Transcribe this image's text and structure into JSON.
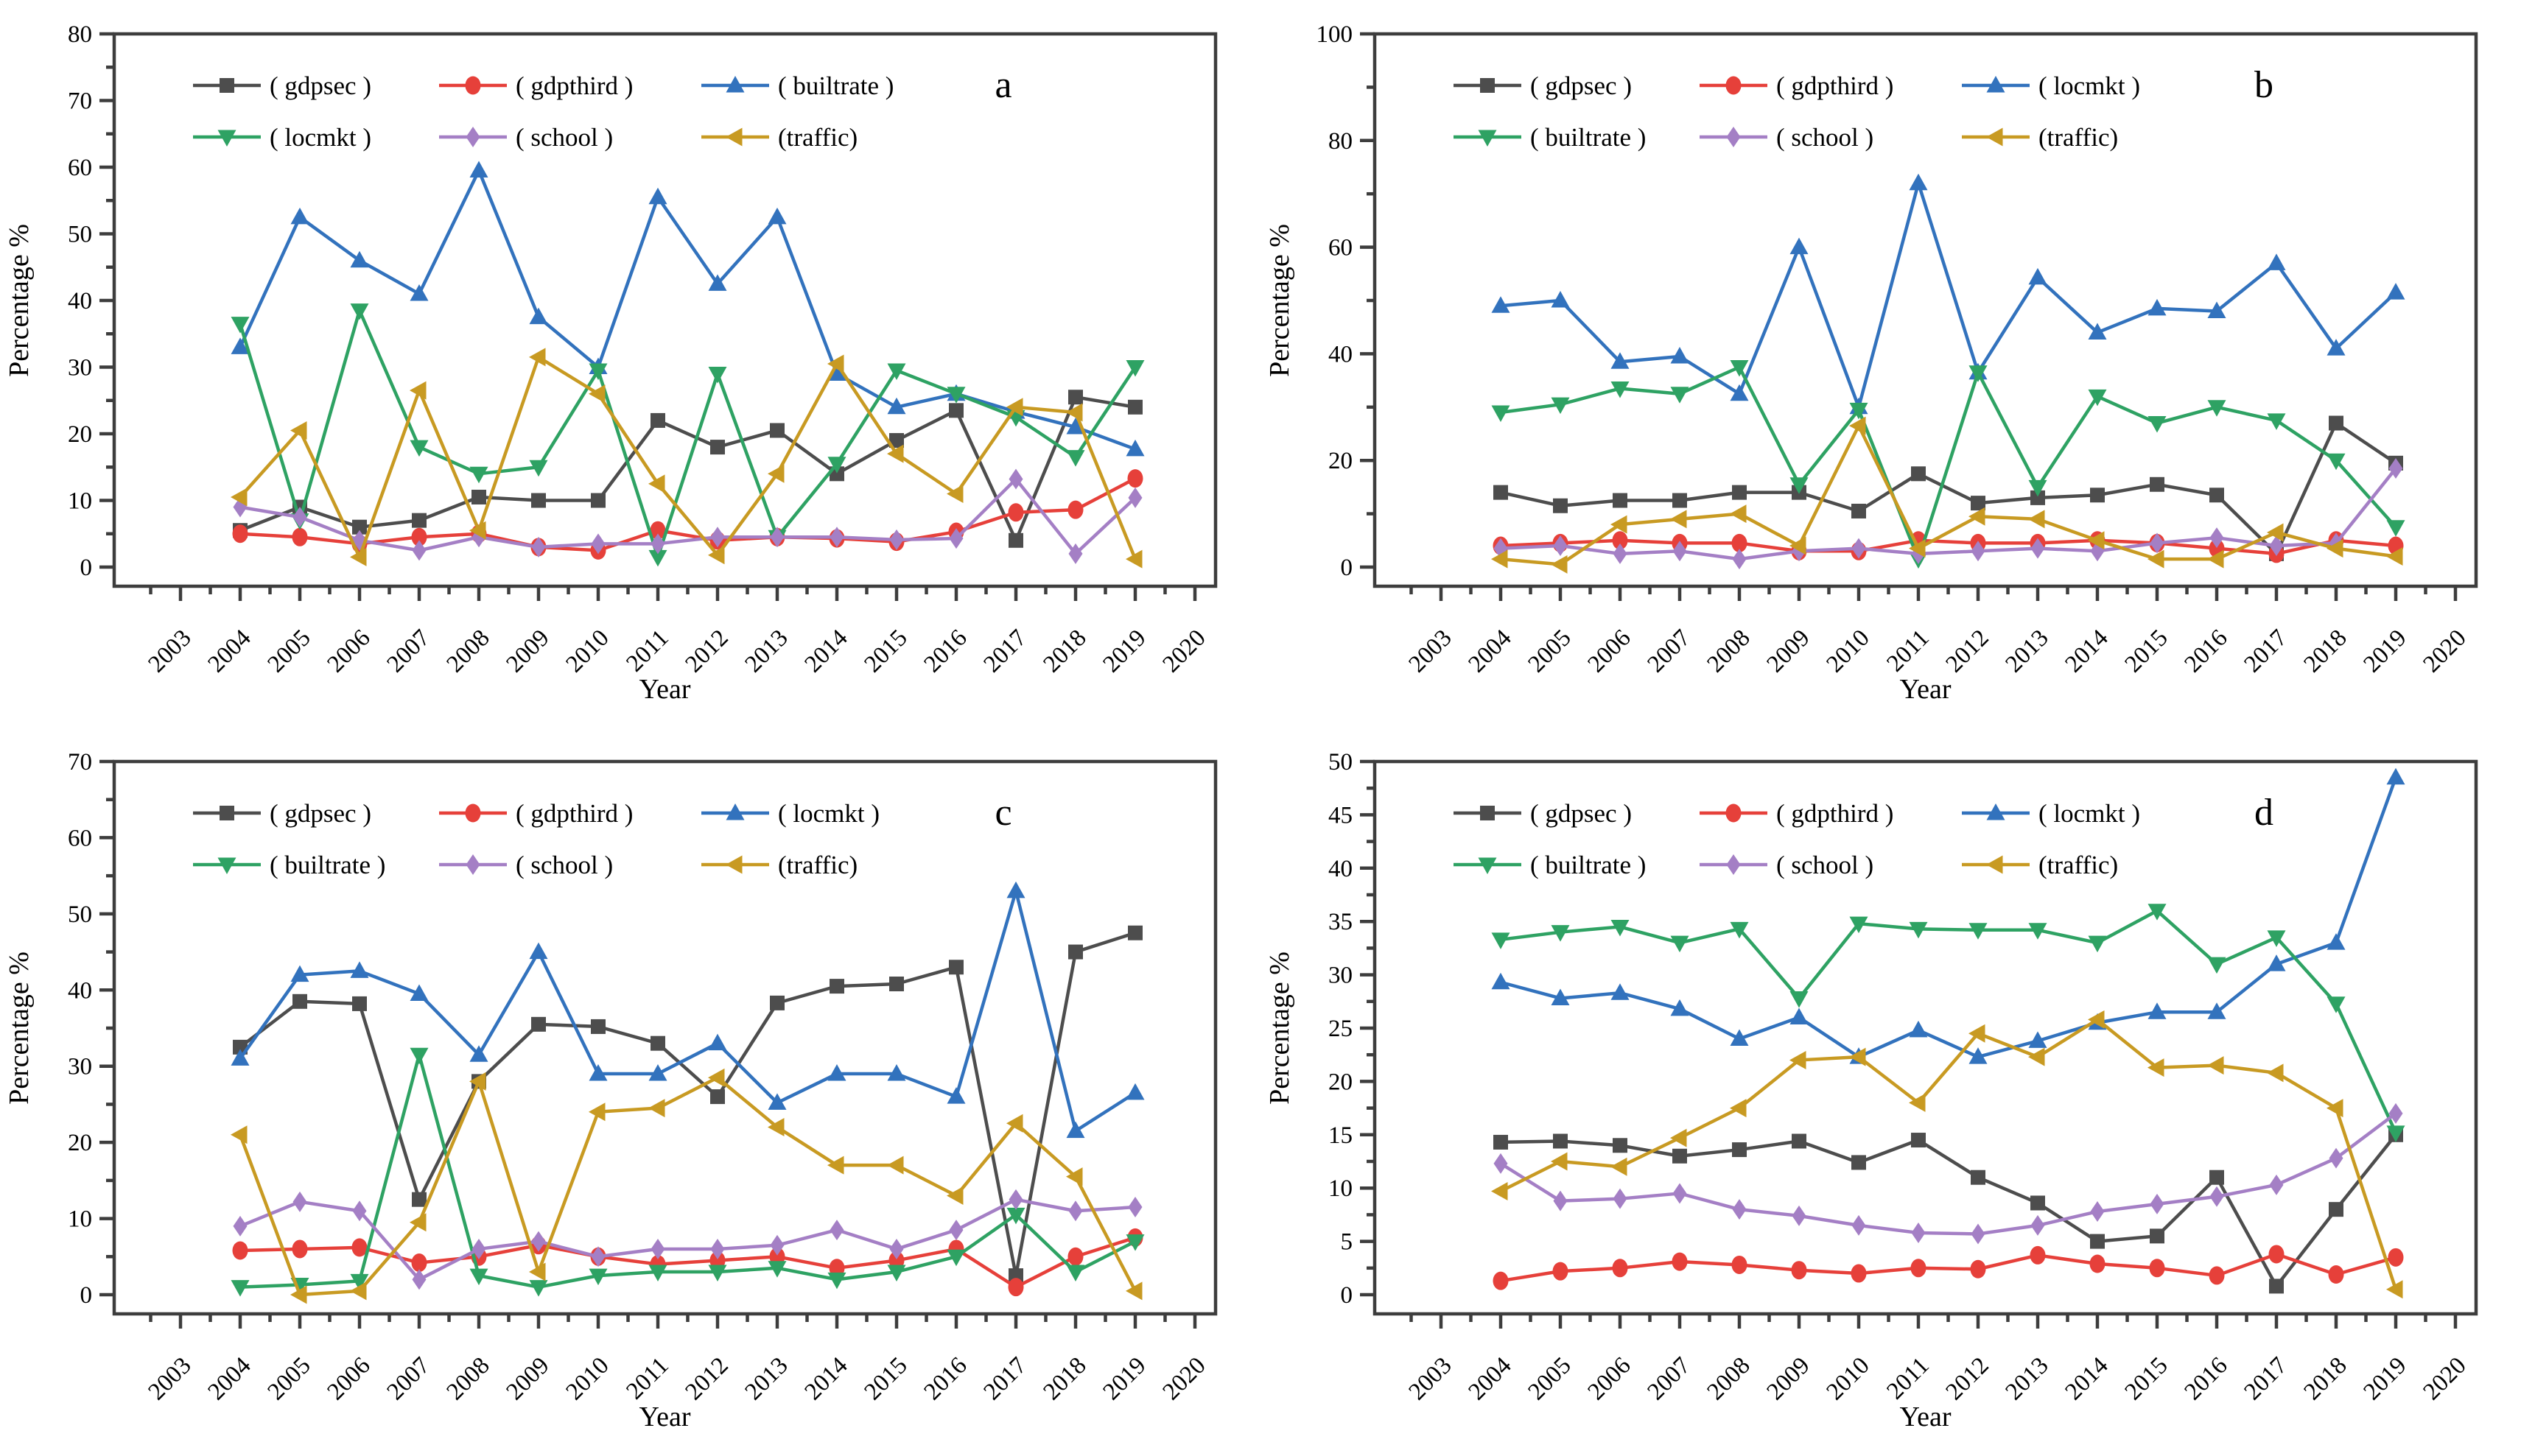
{
  "figure": {
    "background": "#ffffff",
    "axis_color": "#3d3d3d",
    "text_color": "#000000",
    "xlabel": "Year",
    "ylabel": "Percentage %"
  },
  "chart_data": [
    {
      "type": "line",
      "panel_label": "a",
      "xlabel": "Year",
      "ylabel": "Percentage %",
      "ylim": [
        0,
        80
      ],
      "ymajor": 10,
      "yminor": 5,
      "grid": false,
      "legend_position": "top-left-inside",
      "xticks": [
        2003,
        2004,
        2005,
        2006,
        2007,
        2008,
        2009,
        2010,
        2011,
        2012,
        2013,
        2014,
        2015,
        2016,
        2017,
        2018,
        2019,
        2020
      ],
      "categories": [
        2004,
        2005,
        2006,
        2007,
        2008,
        2009,
        2010,
        2011,
        2012,
        2013,
        2014,
        2015,
        2016,
        2017,
        2018,
        2019
      ],
      "series": [
        {
          "key": "gdpsec",
          "name": "( gdpsec )",
          "color": "#4d4d4d",
          "marker": "square",
          "values": [
            5.5,
            9,
            6,
            7,
            10.5,
            10,
            10,
            22,
            18,
            20.5,
            14,
            19,
            23.5,
            4,
            25.5,
            24
          ]
        },
        {
          "key": "gdpthird",
          "name": "( gdpthird )",
          "color": "#e6403a",
          "marker": "circle",
          "values": [
            5,
            4.5,
            3.5,
            4.5,
            5,
            3,
            2.5,
            5.5,
            4,
            4.5,
            4.3,
            3.8,
            5.3,
            8.2,
            8.6,
            13.3
          ]
        },
        {
          "key": "builtrate",
          "name": "( builtrate )",
          "color": "#3272bd",
          "marker": "triangle-up",
          "values": [
            33,
            52.5,
            46,
            41,
            59.5,
            37.5,
            30,
            55.5,
            42.5,
            52.5,
            29,
            24,
            26,
            23.3,
            21,
            17.7
          ]
        },
        {
          "key": "locmkt",
          "name": "( locmkt )",
          "color": "#2ea263",
          "marker": "triangle-down",
          "values": [
            36.5,
            7,
            38.5,
            18,
            14,
            15,
            29.5,
            1.5,
            29,
            4.5,
            15.5,
            29.5,
            26,
            22.5,
            16.5,
            30
          ]
        },
        {
          "key": "school",
          "name": "( school )",
          "color": "#a47fc5",
          "marker": "diamond",
          "values": [
            9,
            7.5,
            4,
            2.5,
            4.5,
            3,
            3.5,
            3.5,
            4.5,
            4.5,
            4.5,
            4.1,
            4.3,
            13.2,
            2,
            10.4
          ]
        },
        {
          "key": "traffic",
          "name": "(traffic)",
          "color": "#c89a22",
          "marker": "triangle-left",
          "values": [
            10.5,
            20.5,
            1.5,
            26.5,
            5.5,
            31.5,
            26,
            12.5,
            1.8,
            14,
            30.5,
            17,
            11,
            24,
            23.2,
            1.2
          ]
        }
      ]
    },
    {
      "type": "line",
      "panel_label": "b",
      "xlabel": "Year",
      "ylabel": "Percentage %",
      "ylim": [
        0,
        100
      ],
      "ymajor": 20,
      "yminor": 10,
      "grid": false,
      "legend_position": "top-left-inside",
      "xticks": [
        2003,
        2004,
        2005,
        2006,
        2007,
        2008,
        2009,
        2010,
        2011,
        2012,
        2013,
        2014,
        2015,
        2016,
        2017,
        2018,
        2019,
        2020
      ],
      "categories": [
        2004,
        2005,
        2006,
        2007,
        2008,
        2009,
        2010,
        2011,
        2012,
        2013,
        2014,
        2015,
        2016,
        2017,
        2018,
        2019
      ],
      "series": [
        {
          "key": "gdpsec",
          "name": "( gdpsec )",
          "color": "#4d4d4d",
          "marker": "square",
          "values": [
            14,
            11.5,
            12.5,
            12.5,
            14,
            14,
            10.5,
            17.5,
            12,
            13,
            13.5,
            15.5,
            13.5,
            2.5,
            27,
            19.5
          ]
        },
        {
          "key": "gdpthird",
          "name": "( gdpthird )",
          "color": "#e6403a",
          "marker": "circle",
          "values": [
            4,
            4.5,
            5,
            4.5,
            4.5,
            3,
            3,
            5,
            4.5,
            4.5,
            5,
            4.5,
            3.5,
            2.5,
            5,
            4
          ]
        },
        {
          "key": "locmkt",
          "name": "( locmkt )",
          "color": "#3272bd",
          "marker": "triangle-up",
          "values": [
            49,
            50,
            38.5,
            39.5,
            32.5,
            60,
            30,
            72,
            36.5,
            54.3,
            44,
            48.5,
            48,
            57,
            41,
            51.5
          ]
        },
        {
          "key": "builtrate",
          "name": "( builtrate )",
          "color": "#2ea263",
          "marker": "triangle-down",
          "values": [
            29,
            30.5,
            33.5,
            32.5,
            37.5,
            15.5,
            29.5,
            1.5,
            36.5,
            15,
            32,
            27,
            30,
            27.5,
            20,
            7.5
          ]
        },
        {
          "key": "school",
          "name": "( school )",
          "color": "#a47fc5",
          "marker": "diamond",
          "values": [
            3.5,
            4,
            2.5,
            3,
            1.5,
            3,
            3.5,
            2.5,
            3,
            3.5,
            3,
            4.5,
            5.5,
            4,
            4.5,
            18.5
          ]
        },
        {
          "key": "traffic",
          "name": "(traffic)",
          "color": "#c89a22",
          "marker": "triangle-left",
          "values": [
            1.5,
            0.5,
            8,
            9,
            10,
            4,
            26.5,
            3.5,
            9.5,
            9,
            5,
            1.5,
            1.5,
            6.5,
            3.5,
            2
          ]
        }
      ]
    },
    {
      "type": "line",
      "panel_label": "c",
      "xlabel": "Year",
      "ylabel": "Percentage %",
      "ylim": [
        0,
        70
      ],
      "ymajor": 10,
      "yminor": 5,
      "grid": false,
      "legend_position": "top-left-inside",
      "xticks": [
        2003,
        2004,
        2005,
        2006,
        2007,
        2008,
        2009,
        2010,
        2011,
        2012,
        2013,
        2014,
        2015,
        2016,
        2017,
        2018,
        2019,
        2020
      ],
      "categories": [
        2004,
        2005,
        2006,
        2007,
        2008,
        2009,
        2010,
        2011,
        2012,
        2013,
        2014,
        2015,
        2016,
        2017,
        2018,
        2019
      ],
      "series": [
        {
          "key": "gdpsec",
          "name": "( gdpsec )",
          "color": "#4d4d4d",
          "marker": "square",
          "values": [
            32.5,
            38.5,
            38.2,
            12.5,
            28,
            35.5,
            35.2,
            33,
            26,
            38.3,
            40.5,
            40.8,
            43,
            2.5,
            45,
            47.5
          ]
        },
        {
          "key": "gdpthird",
          "name": "( gdpthird )",
          "color": "#e6403a",
          "marker": "circle",
          "values": [
            5.8,
            6,
            6.2,
            4.2,
            5,
            6.5,
            5,
            4,
            4.5,
            5,
            3.5,
            4.5,
            6,
            1,
            5,
            7.5
          ]
        },
        {
          "key": "locmkt",
          "name": "( locmkt )",
          "color": "#3272bd",
          "marker": "triangle-up",
          "values": [
            31,
            42,
            42.5,
            39.5,
            31.5,
            45,
            29,
            29,
            33,
            25.2,
            29,
            29,
            26,
            53,
            21.5,
            26.5
          ]
        },
        {
          "key": "builtrate",
          "name": "( builtrate )",
          "color": "#2ea263",
          "marker": "triangle-down",
          "values": [
            1,
            1.3,
            1.8,
            31.5,
            2.5,
            1,
            2.5,
            3,
            3,
            3.5,
            2,
            3,
            5,
            10.5,
            3,
            7
          ]
        },
        {
          "key": "school",
          "name": "( school )",
          "color": "#a47fc5",
          "marker": "diamond",
          "values": [
            9,
            12.2,
            11,
            2,
            6,
            7,
            5,
            6,
            6,
            6.5,
            8.5,
            6,
            8.5,
            12.5,
            11,
            11.5
          ]
        },
        {
          "key": "traffic",
          "name": "(traffic)",
          "color": "#c89a22",
          "marker": "triangle-left",
          "values": [
            21,
            0,
            0.5,
            9.5,
            28,
            3,
            24,
            24.5,
            28.5,
            22,
            17,
            17,
            13,
            22.5,
            15.5,
            0.5
          ]
        }
      ]
    },
    {
      "type": "line",
      "panel_label": "d",
      "xlabel": "Year",
      "ylabel": "Percentage %",
      "ylim": [
        0,
        50
      ],
      "ymajor": 5,
      "yminor": 2.5,
      "grid": false,
      "legend_position": "top-left-inside",
      "xticks": [
        2003,
        2004,
        2005,
        2006,
        2007,
        2008,
        2009,
        2010,
        2011,
        2012,
        2013,
        2014,
        2015,
        2016,
        2017,
        2018,
        2019,
        2020
      ],
      "categories": [
        2004,
        2005,
        2006,
        2007,
        2008,
        2009,
        2010,
        2011,
        2012,
        2013,
        2014,
        2015,
        2016,
        2017,
        2018,
        2019
      ],
      "series": [
        {
          "key": "gdpsec",
          "name": "( gdpsec )",
          "color": "#4d4d4d",
          "marker": "square",
          "values": [
            14.3,
            14.4,
            14,
            13,
            13.6,
            14.4,
            12.4,
            14.5,
            11,
            8.6,
            5,
            5.5,
            11,
            0.8,
            8,
            15
          ]
        },
        {
          "key": "gdpthird",
          "name": "( gdpthird )",
          "color": "#e6403a",
          "marker": "circle",
          "values": [
            1.3,
            2.2,
            2.5,
            3.1,
            2.8,
            2.3,
            2,
            2.5,
            2.4,
            3.7,
            2.9,
            2.5,
            1.8,
            3.8,
            1.9,
            3.5
          ]
        },
        {
          "key": "locmkt",
          "name": "( locmkt )",
          "color": "#3272bd",
          "marker": "triangle-up",
          "values": [
            29.3,
            27.8,
            28.3,
            26.8,
            24,
            26,
            22.3,
            24.8,
            22.3,
            23.8,
            25.5,
            26.5,
            26.5,
            31,
            33,
            48.5
          ]
        },
        {
          "key": "builtrate",
          "name": "( builtrate )",
          "color": "#2ea263",
          "marker": "triangle-down",
          "values": [
            33.3,
            34,
            34.5,
            33,
            34.3,
            27.8,
            34.8,
            34.3,
            34.2,
            34.2,
            33,
            36,
            31,
            33.5,
            27.3,
            15.2
          ]
        },
        {
          "key": "school",
          "name": "( school )",
          "color": "#a47fc5",
          "marker": "diamond",
          "values": [
            12.3,
            8.8,
            9,
            9.5,
            8,
            7.4,
            6.5,
            5.8,
            5.7,
            6.5,
            7.8,
            8.5,
            9.2,
            10.3,
            12.8,
            17
          ]
        },
        {
          "key": "traffic",
          "name": "(traffic)",
          "color": "#c89a22",
          "marker": "triangle-left",
          "values": [
            9.7,
            12.5,
            12,
            14.7,
            17.5,
            22,
            22.3,
            18,
            24.5,
            22.3,
            25.8,
            21.3,
            21.5,
            20.8,
            17.5,
            0.5
          ]
        }
      ]
    }
  ]
}
